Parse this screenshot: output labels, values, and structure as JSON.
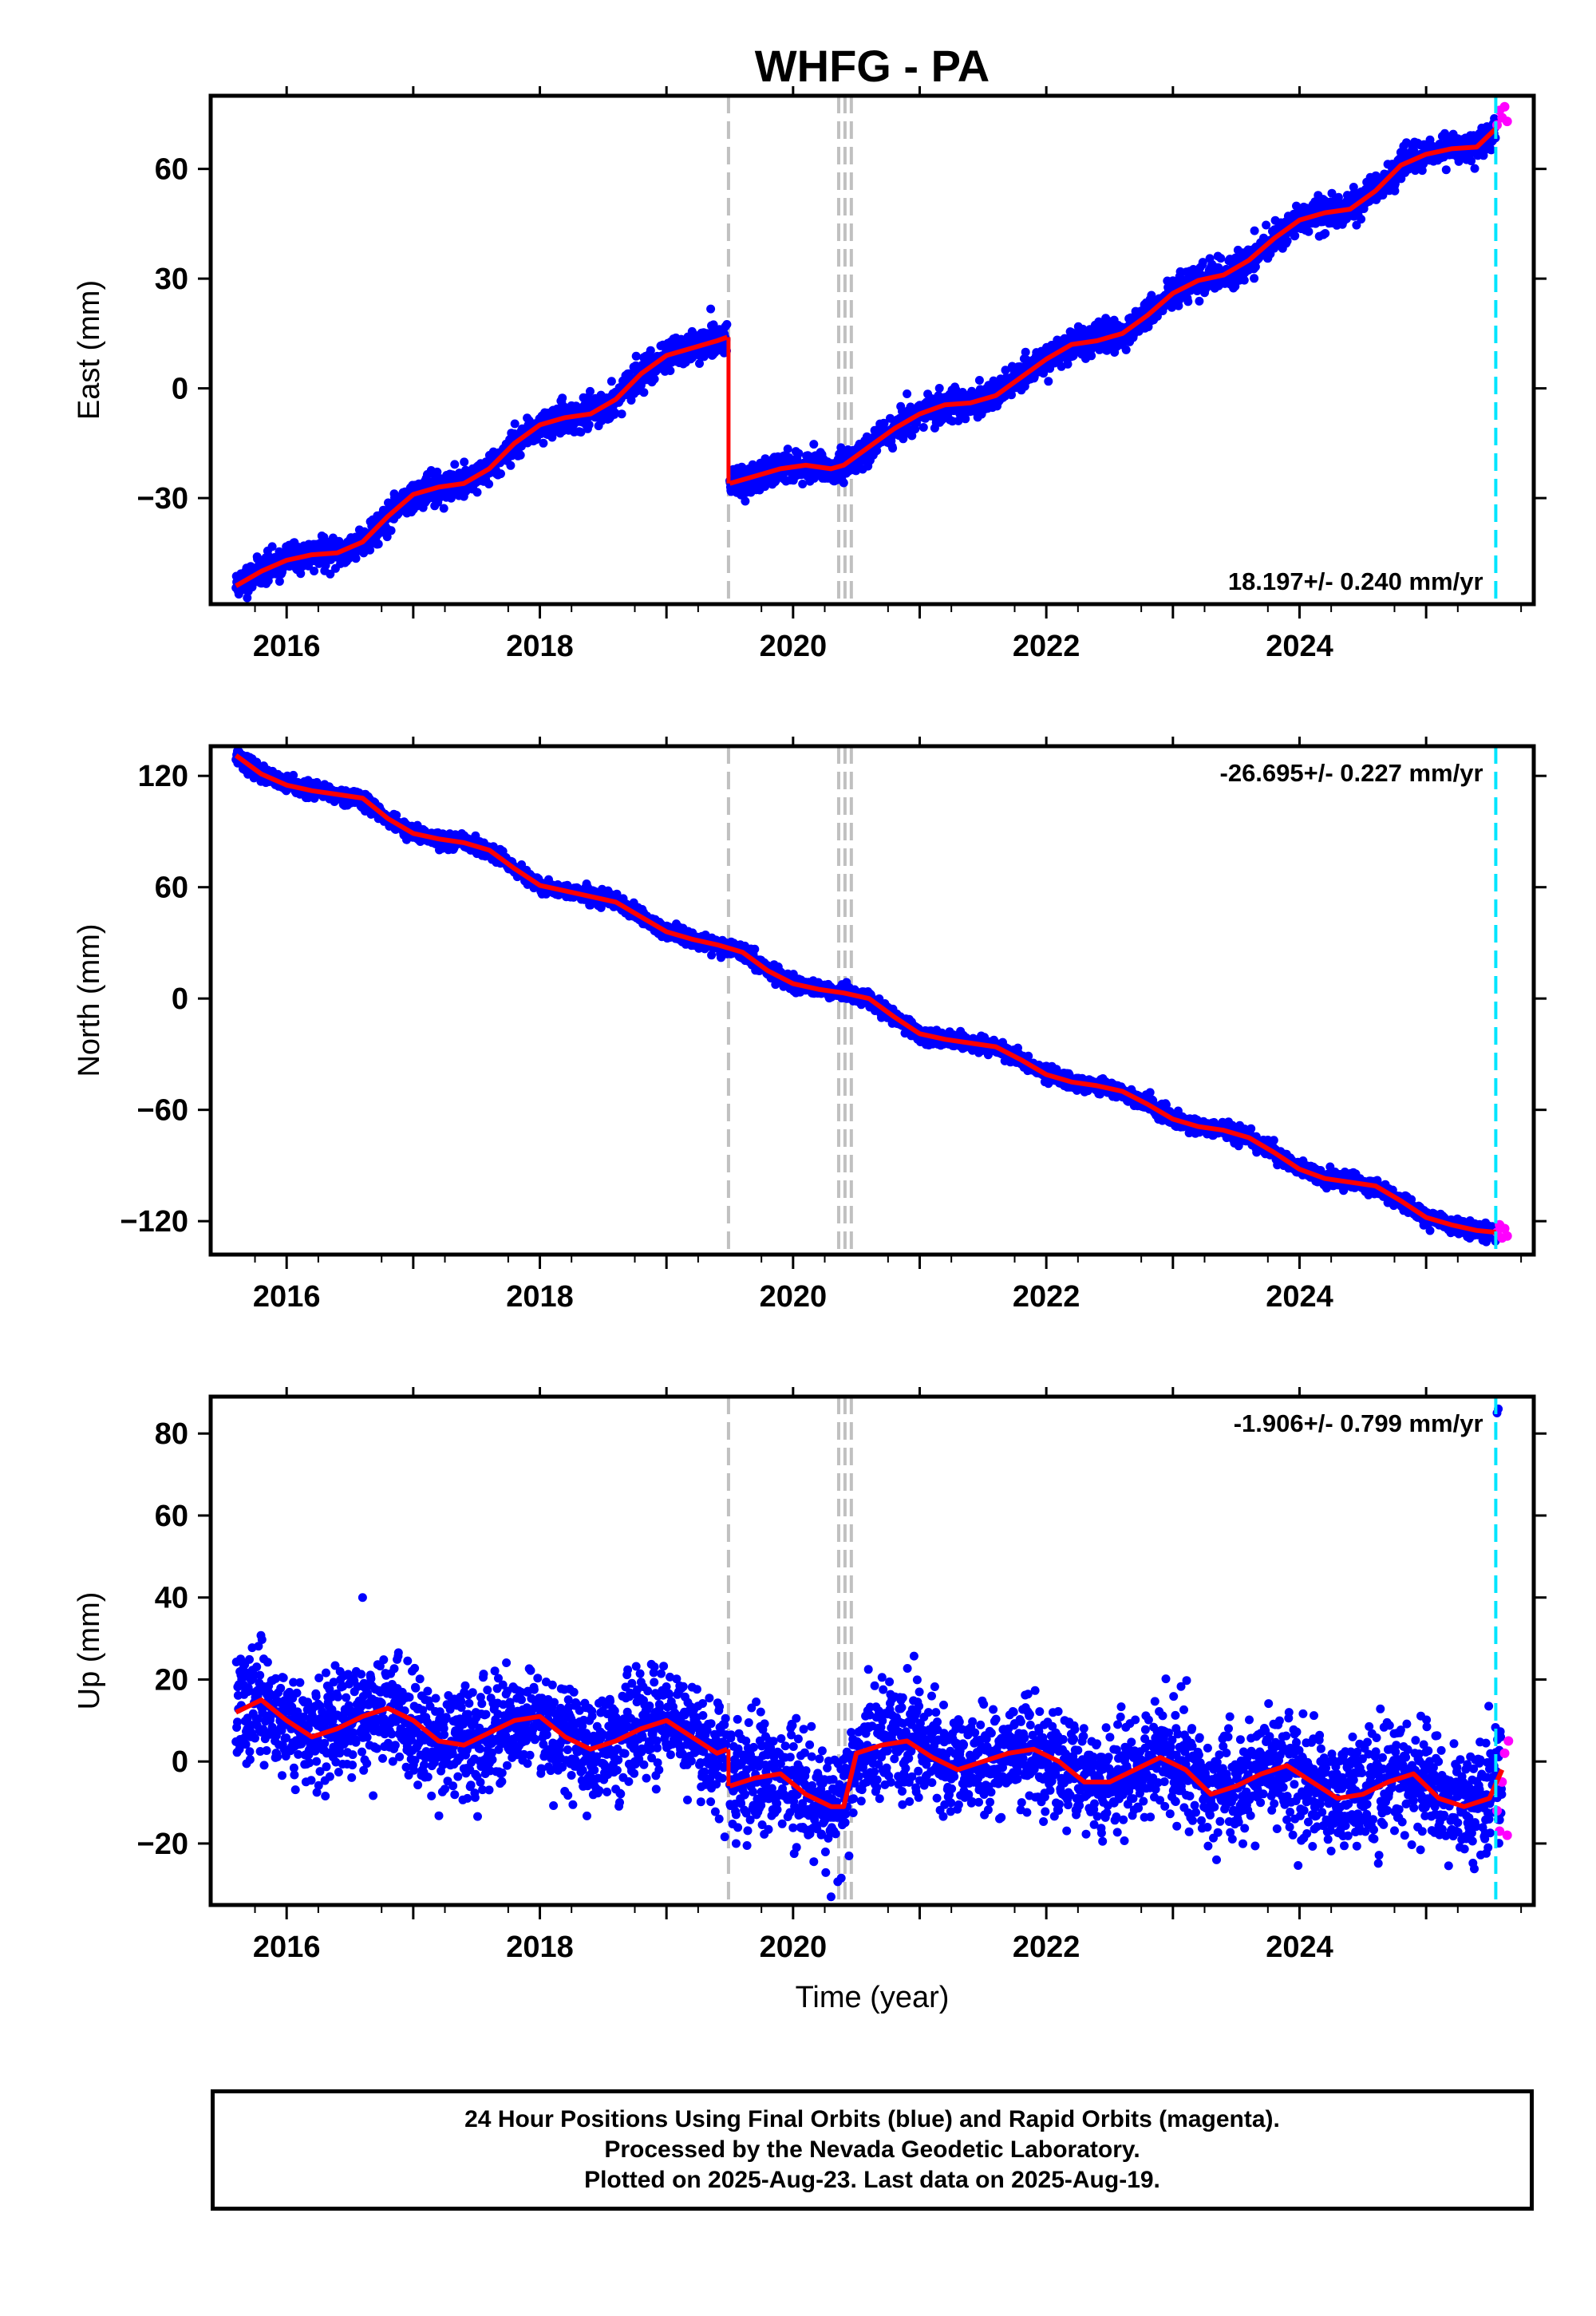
{
  "chart_data": {
    "type": "scatter",
    "title": "WHFG - PA",
    "xlabel": "Time (year)",
    "x_ticks": [
      "2016",
      "2018",
      "2020",
      "2022",
      "2024"
    ],
    "xlim": [
      2015.4,
      2025.85
    ],
    "offset_lines": {
      "equipment_changes": [
        2019.49,
        2020.36,
        2020.41,
        2020.46
      ],
      "last_data_marker": 2025.55
    },
    "series_colors": {
      "final_orbits": "#0000ff",
      "rapid_orbits": "#ff00ff",
      "model_fit": "#ff0000",
      "offset_lines": "#c0c0c0",
      "last_marker": "#00e5ff"
    },
    "panels": [
      {
        "id": "east",
        "ylabel": "East (mm)",
        "ylim": [
          -59,
          80
        ],
        "y_ticks": [
          60,
          30,
          0,
          -30
        ],
        "y_tick_labels": [
          "60",
          "30",
          "0",
          "−30"
        ],
        "rate_label": "18.197+/- 0.240 mm/yr",
        "rate_position": "bottom-right",
        "fit": {
          "x": [
            2015.6,
            2015.8,
            2016.0,
            2016.2,
            2016.4,
            2016.6,
            2016.8,
            2017.0,
            2017.2,
            2017.4,
            2017.6,
            2017.8,
            2018.0,
            2018.2,
            2018.4,
            2018.6,
            2018.8,
            2019.0,
            2019.2,
            2019.4,
            2019.48
          ],
          "y": [
            -54,
            -50,
            -47,
            -45.5,
            -45,
            -42,
            -35,
            -29,
            -27,
            -26,
            -22,
            -15,
            -10,
            -8,
            -7,
            -3,
            4,
            9,
            11,
            13,
            14
          ]
        },
        "fit2": {
          "x": [
            2019.5,
            2019.7,
            2019.9,
            2020.1,
            2020.3,
            2020.4,
            2020.6,
            2020.8,
            2021.0,
            2021.2,
            2021.4,
            2021.6,
            2021.8,
            2022.0,
            2022.2,
            2022.4,
            2022.6,
            2022.8,
            2023.0,
            2023.2,
            2023.4,
            2023.6,
            2023.8,
            2024.0,
            2024.2,
            2024.4,
            2024.6,
            2024.8,
            2025.0,
            2025.2,
            2025.4,
            2025.55
          ],
          "y": [
            -26,
            -24,
            -22,
            -21,
            -22,
            -21,
            -16,
            -11,
            -7,
            -4.5,
            -4,
            -2,
            3,
            8,
            12,
            13,
            15,
            20,
            26,
            29.5,
            31,
            35,
            41,
            46,
            48,
            49,
            54,
            61,
            64,
            65.5,
            66,
            71
          ]
        },
        "points_seed": 11,
        "noise_mm": 2.0,
        "rapid_points": {
          "x": [
            2025.56,
            2025.58,
            2025.6,
            2025.62,
            2025.64
          ],
          "y": [
            72,
            76,
            74,
            77,
            73
          ]
        }
      },
      {
        "id": "north",
        "ylabel": "North (mm)",
        "ylim": [
          -138,
          136
        ],
        "y_ticks": [
          120,
          60,
          0,
          -60,
          -120
        ],
        "y_tick_labels": [
          "120",
          "60",
          "0",
          "−60",
          "−120"
        ],
        "rate_label": "-26.695+/- 0.227 mm/yr",
        "rate_position": "top-right",
        "fit": {
          "x": [
            2015.6,
            2015.8,
            2016.0,
            2016.2,
            2016.4,
            2016.6,
            2016.8,
            2017.0,
            2017.2,
            2017.4,
            2017.6,
            2017.8,
            2018.0,
            2018.2,
            2018.4,
            2018.6,
            2018.8,
            2019.0,
            2019.2,
            2019.4,
            2019.6,
            2019.8,
            2020.0,
            2020.2,
            2020.4,
            2020.6,
            2020.8,
            2021.0,
            2021.2,
            2021.4,
            2021.6,
            2021.8,
            2022.0,
            2022.2,
            2022.4,
            2022.6,
            2022.8,
            2023.0,
            2023.2,
            2023.4,
            2023.6,
            2023.8,
            2024.0,
            2024.2,
            2024.4,
            2024.6,
            2024.8,
            2025.0,
            2025.2,
            2025.4,
            2025.55
          ],
          "y": [
            131,
            121,
            115,
            112,
            110,
            108,
            97,
            89,
            86,
            84,
            80,
            70,
            61,
            58,
            55,
            52,
            44,
            36,
            32,
            29,
            25,
            15,
            8,
            5,
            3,
            0,
            -10,
            -19,
            -22,
            -24,
            -26,
            -33,
            -41,
            -45,
            -47,
            -50,
            -57,
            -65,
            -69,
            -71,
            -75,
            -83,
            -92,
            -97,
            -99,
            -101,
            -109,
            -118,
            -122,
            -125,
            -126
          ]
        },
        "points_seed": 23,
        "noise_mm": 2.0,
        "rapid_points": {
          "x": [
            2025.56,
            2025.58,
            2025.6,
            2025.62,
            2025.64
          ],
          "y": [
            -126,
            -122,
            -129,
            -124,
            -128
          ]
        }
      },
      {
        "id": "up",
        "ylabel": "Up (mm)",
        "ylim": [
          -35,
          89
        ],
        "y_ticks": [
          80,
          60,
          40,
          20,
          0,
          -20
        ],
        "y_tick_labels": [
          "80",
          "60",
          "40",
          "20",
          "0",
          "−20"
        ],
        "rate_label": "-1.906+/- 0.799 mm/yr",
        "rate_position": "top-right",
        "fit": {
          "x": [
            2015.6,
            2015.8,
            2016.0,
            2016.2,
            2016.4,
            2016.6,
            2016.8,
            2017.0,
            2017.2,
            2017.4,
            2017.6,
            2017.8,
            2018.0,
            2018.2,
            2018.4,
            2018.6,
            2018.8,
            2019.0,
            2019.2,
            2019.4,
            2019.48
          ],
          "y": [
            12,
            15,
            10,
            6,
            8,
            11,
            13,
            10,
            5,
            4,
            7,
            10,
            11,
            6,
            3,
            5,
            8,
            10,
            6,
            2,
            3
          ]
        },
        "fit2": {
          "x": [
            2019.5,
            2019.7,
            2019.9,
            2020.1,
            2020.3,
            2020.4,
            2020.5,
            2020.7,
            2020.9,
            2021.1,
            2021.3,
            2021.5,
            2021.7,
            2021.9,
            2022.1,
            2022.3,
            2022.5,
            2022.7,
            2022.9,
            2023.1,
            2023.3,
            2023.5,
            2023.7,
            2023.9,
            2024.1,
            2024.3,
            2024.5,
            2024.7,
            2024.9,
            2025.1,
            2025.3,
            2025.5,
            2025.6
          ],
          "y": [
            -6,
            -4,
            -3,
            -8,
            -11,
            -11,
            2,
            4,
            5,
            1,
            -2,
            0,
            2,
            3,
            0,
            -5,
            -5,
            -2,
            1,
            -2,
            -8,
            -6,
            -3,
            -1,
            -5,
            -9,
            -8,
            -5,
            -3,
            -9,
            -11,
            -9,
            -2
          ]
        },
        "points_seed": 37,
        "noise_mm": 6.5,
        "rapid_points": {
          "x": [
            2025.56,
            2025.58,
            2025.6,
            2025.62,
            2025.64,
            2025.65
          ],
          "y": [
            -12,
            -17,
            -5,
            2,
            -18,
            5
          ]
        },
        "outliers": {
          "x": [
            2025.56,
            2025.57,
            2020.3,
            2016.6,
            2019.55
          ],
          "y": [
            85,
            86,
            -33,
            40,
            -20
          ]
        }
      }
    ]
  },
  "footer": {
    "line1": "24 Hour Positions Using Final Orbits (blue) and Rapid Orbits (magenta).",
    "line2": "Processed by the Nevada Geodetic Laboratory.",
    "line3": "Plotted on 2025-Aug-23. Last data on 2025-Aug-19."
  }
}
